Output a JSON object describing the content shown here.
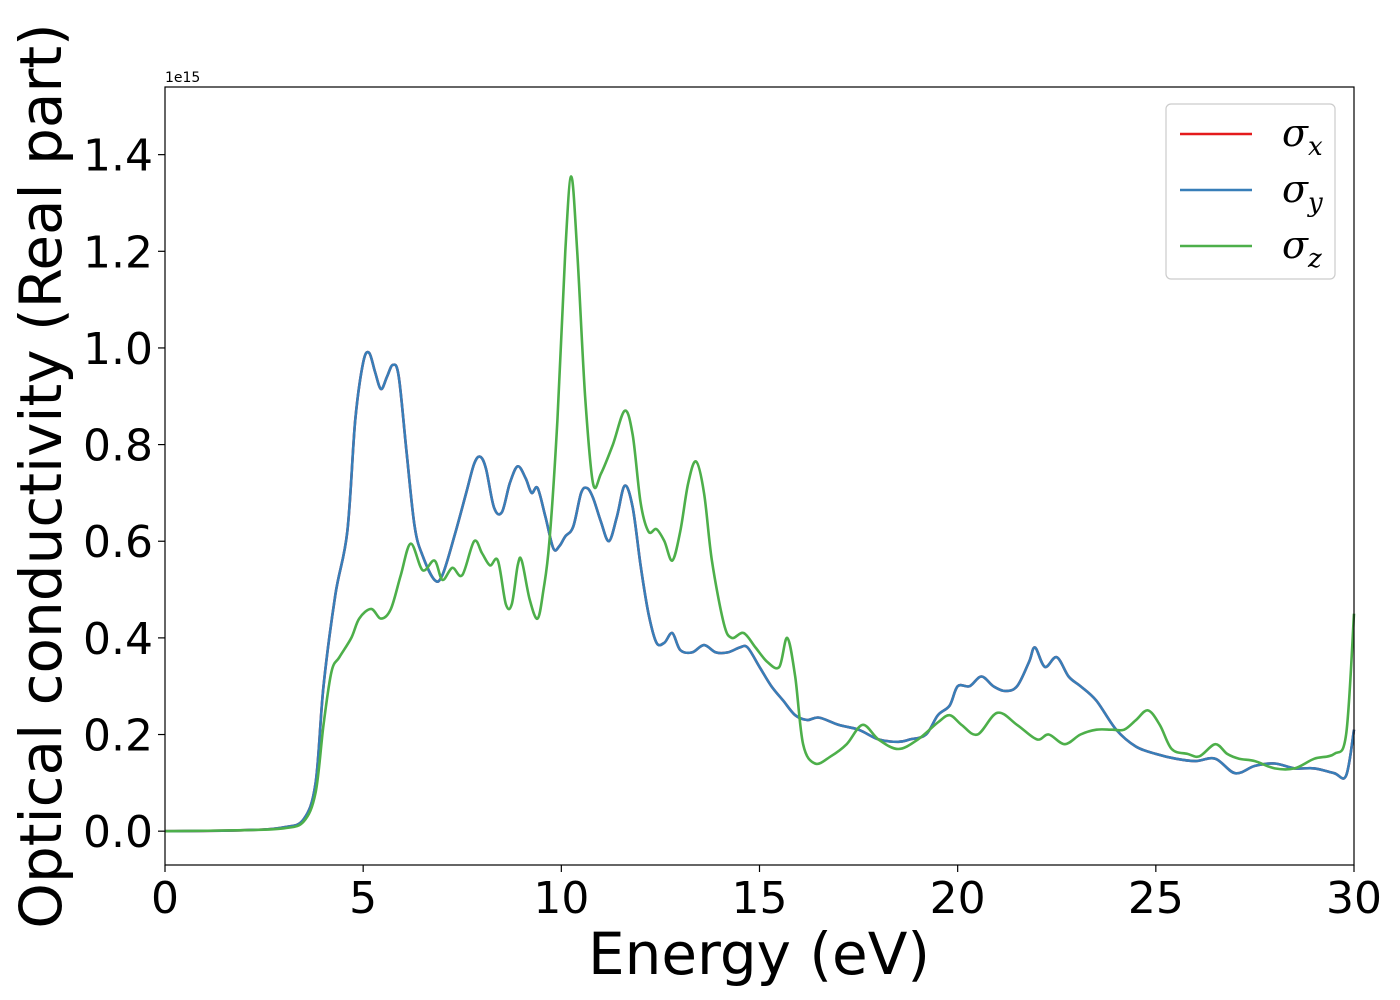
{
  "chart_data": {
    "type": "line",
    "title": "",
    "xlabel": "Energy (eV)",
    "ylabel": "Optical conductivity (Real part)",
    "y_offset_label": "1e15",
    "xlim": [
      0,
      30
    ],
    "ylim": [
      -0.07,
      1.54
    ],
    "x_ticks": [
      0,
      5,
      10,
      15,
      20,
      25,
      30
    ],
    "x_tick_labels": [
      "0",
      "5",
      "10",
      "15",
      "20",
      "25",
      "30"
    ],
    "y_ticks": [
      0.0,
      0.2,
      0.4,
      0.6,
      0.8,
      1.0,
      1.2,
      1.4
    ],
    "y_tick_labels": [
      "0.0",
      "0.2",
      "0.4",
      "0.6",
      "0.8",
      "1.0",
      "1.2",
      "1.4"
    ],
    "grid": false,
    "legend_position": "top-right",
    "series": [
      {
        "name": "σx",
        "symbol": "σ",
        "subscript": "x",
        "color": "#e41a1c",
        "x": [
          0,
          2,
          3,
          3.5,
          3.8,
          4.0,
          4.3,
          4.6,
          4.8,
          5.0,
          5.15,
          5.3,
          5.45,
          5.6,
          5.75,
          5.9,
          6.1,
          6.3,
          6.5,
          6.8,
          7.0,
          7.3,
          7.6,
          7.8,
          7.95,
          8.1,
          8.3,
          8.5,
          8.7,
          8.9,
          9.1,
          9.25,
          9.4,
          9.6,
          9.8,
          9.95,
          10.1,
          10.3,
          10.5,
          10.65,
          10.8,
          11.0,
          11.2,
          11.4,
          11.6,
          11.8,
          12.0,
          12.2,
          12.4,
          12.6,
          12.8,
          13.0,
          13.3,
          13.6,
          13.9,
          14.2,
          14.5,
          14.7,
          15.0,
          15.3,
          15.6,
          15.9,
          16.2,
          16.5,
          17.0,
          17.5,
          18.0,
          18.5,
          18.8,
          19.2,
          19.5,
          19.8,
          20.0,
          20.3,
          20.6,
          20.9,
          21.2,
          21.5,
          21.8,
          21.95,
          22.2,
          22.5,
          22.8,
          23.1,
          23.5,
          24.0,
          24.5,
          25.0,
          25.5,
          26.0,
          26.5,
          27.0,
          27.5,
          28.0,
          28.5,
          29.0,
          29.5,
          29.8,
          30.0
        ],
        "y": [
          0,
          0.002,
          0.008,
          0.025,
          0.1,
          0.3,
          0.49,
          0.62,
          0.85,
          0.97,
          0.99,
          0.95,
          0.915,
          0.94,
          0.965,
          0.94,
          0.78,
          0.63,
          0.57,
          0.52,
          0.53,
          0.61,
          0.7,
          0.76,
          0.775,
          0.75,
          0.67,
          0.66,
          0.72,
          0.755,
          0.73,
          0.7,
          0.71,
          0.65,
          0.585,
          0.59,
          0.61,
          0.63,
          0.7,
          0.71,
          0.69,
          0.64,
          0.6,
          0.65,
          0.715,
          0.67,
          0.55,
          0.45,
          0.39,
          0.39,
          0.41,
          0.375,
          0.37,
          0.385,
          0.37,
          0.37,
          0.38,
          0.38,
          0.34,
          0.3,
          0.27,
          0.24,
          0.23,
          0.235,
          0.22,
          0.21,
          0.19,
          0.185,
          0.19,
          0.2,
          0.24,
          0.26,
          0.3,
          0.3,
          0.32,
          0.3,
          0.29,
          0.3,
          0.35,
          0.38,
          0.34,
          0.36,
          0.32,
          0.3,
          0.27,
          0.21,
          0.175,
          0.16,
          0.15,
          0.145,
          0.15,
          0.12,
          0.135,
          0.14,
          0.13,
          0.13,
          0.12,
          0.115,
          0.21
        ]
      },
      {
        "name": "σy",
        "symbol": "σ",
        "subscript": "y",
        "color": "#377eb8",
        "x": [
          0,
          2,
          3,
          3.5,
          3.8,
          4.0,
          4.3,
          4.6,
          4.8,
          5.0,
          5.15,
          5.3,
          5.45,
          5.6,
          5.75,
          5.9,
          6.1,
          6.3,
          6.5,
          6.8,
          7.0,
          7.3,
          7.6,
          7.8,
          7.95,
          8.1,
          8.3,
          8.5,
          8.7,
          8.9,
          9.1,
          9.25,
          9.4,
          9.6,
          9.8,
          9.95,
          10.1,
          10.3,
          10.5,
          10.65,
          10.8,
          11.0,
          11.2,
          11.4,
          11.6,
          11.8,
          12.0,
          12.2,
          12.4,
          12.6,
          12.8,
          13.0,
          13.3,
          13.6,
          13.9,
          14.2,
          14.5,
          14.7,
          15.0,
          15.3,
          15.6,
          15.9,
          16.2,
          16.5,
          17.0,
          17.5,
          18.0,
          18.5,
          18.8,
          19.2,
          19.5,
          19.8,
          20.0,
          20.3,
          20.6,
          20.9,
          21.2,
          21.5,
          21.8,
          21.95,
          22.2,
          22.5,
          22.8,
          23.1,
          23.5,
          24.0,
          24.5,
          25.0,
          25.5,
          26.0,
          26.5,
          27.0,
          27.5,
          28.0,
          28.5,
          29.0,
          29.5,
          29.8,
          30.0
        ],
        "y": [
          0,
          0.002,
          0.008,
          0.025,
          0.1,
          0.3,
          0.49,
          0.62,
          0.85,
          0.97,
          0.99,
          0.95,
          0.915,
          0.94,
          0.965,
          0.94,
          0.78,
          0.63,
          0.57,
          0.52,
          0.53,
          0.61,
          0.7,
          0.76,
          0.775,
          0.75,
          0.67,
          0.66,
          0.72,
          0.755,
          0.73,
          0.7,
          0.71,
          0.65,
          0.585,
          0.59,
          0.61,
          0.63,
          0.7,
          0.71,
          0.69,
          0.64,
          0.6,
          0.65,
          0.715,
          0.67,
          0.55,
          0.45,
          0.39,
          0.39,
          0.41,
          0.375,
          0.37,
          0.385,
          0.37,
          0.37,
          0.38,
          0.38,
          0.34,
          0.3,
          0.27,
          0.24,
          0.23,
          0.235,
          0.22,
          0.21,
          0.19,
          0.185,
          0.19,
          0.2,
          0.24,
          0.26,
          0.3,
          0.3,
          0.32,
          0.3,
          0.29,
          0.3,
          0.35,
          0.38,
          0.34,
          0.36,
          0.32,
          0.3,
          0.27,
          0.21,
          0.175,
          0.16,
          0.15,
          0.145,
          0.15,
          0.12,
          0.135,
          0.14,
          0.13,
          0.13,
          0.12,
          0.115,
          0.21
        ]
      },
      {
        "name": "σz",
        "symbol": "σ",
        "subscript": "z",
        "color": "#4daf4a",
        "x": [
          0,
          2,
          3,
          3.5,
          3.8,
          4.0,
          4.2,
          4.4,
          4.7,
          4.9,
          5.2,
          5.45,
          5.7,
          5.95,
          6.2,
          6.5,
          6.8,
          7.0,
          7.25,
          7.5,
          7.8,
          8.0,
          8.2,
          8.4,
          8.6,
          8.75,
          8.9,
          9.0,
          9.2,
          9.4,
          9.55,
          9.7,
          9.9,
          10.1,
          10.25,
          10.4,
          10.6,
          10.8,
          11.0,
          11.3,
          11.6,
          11.8,
          12.0,
          12.2,
          12.4,
          12.6,
          12.8,
          13.0,
          13.2,
          13.4,
          13.6,
          13.8,
          14.1,
          14.3,
          14.6,
          14.9,
          15.2,
          15.5,
          15.7,
          15.9,
          16.1,
          16.4,
          16.8,
          17.2,
          17.6,
          18.0,
          18.5,
          19.0,
          19.5,
          19.8,
          20.1,
          20.5,
          21.0,
          21.5,
          22.0,
          22.3,
          22.7,
          23.1,
          23.5,
          23.9,
          24.2,
          24.5,
          24.8,
          25.1,
          25.4,
          25.8,
          26.1,
          26.5,
          26.8,
          27.1,
          27.5,
          28.0,
          28.5,
          29.0,
          29.5,
          29.8,
          30.0
        ],
        "y": [
          0,
          0.002,
          0.006,
          0.02,
          0.08,
          0.22,
          0.33,
          0.36,
          0.4,
          0.44,
          0.46,
          0.44,
          0.46,
          0.53,
          0.595,
          0.54,
          0.56,
          0.52,
          0.545,
          0.53,
          0.6,
          0.575,
          0.55,
          0.56,
          0.47,
          0.47,
          0.55,
          0.56,
          0.48,
          0.44,
          0.5,
          0.6,
          0.85,
          1.2,
          1.355,
          1.2,
          0.9,
          0.72,
          0.74,
          0.8,
          0.87,
          0.82,
          0.68,
          0.62,
          0.625,
          0.6,
          0.56,
          0.62,
          0.72,
          0.765,
          0.7,
          0.56,
          0.43,
          0.4,
          0.41,
          0.38,
          0.35,
          0.34,
          0.4,
          0.32,
          0.18,
          0.14,
          0.155,
          0.18,
          0.22,
          0.19,
          0.17,
          0.19,
          0.225,
          0.24,
          0.22,
          0.2,
          0.245,
          0.22,
          0.19,
          0.2,
          0.18,
          0.2,
          0.21,
          0.21,
          0.21,
          0.23,
          0.25,
          0.22,
          0.17,
          0.16,
          0.155,
          0.18,
          0.16,
          0.15,
          0.145,
          0.13,
          0.13,
          0.15,
          0.16,
          0.2,
          0.45
        ]
      }
    ]
  }
}
